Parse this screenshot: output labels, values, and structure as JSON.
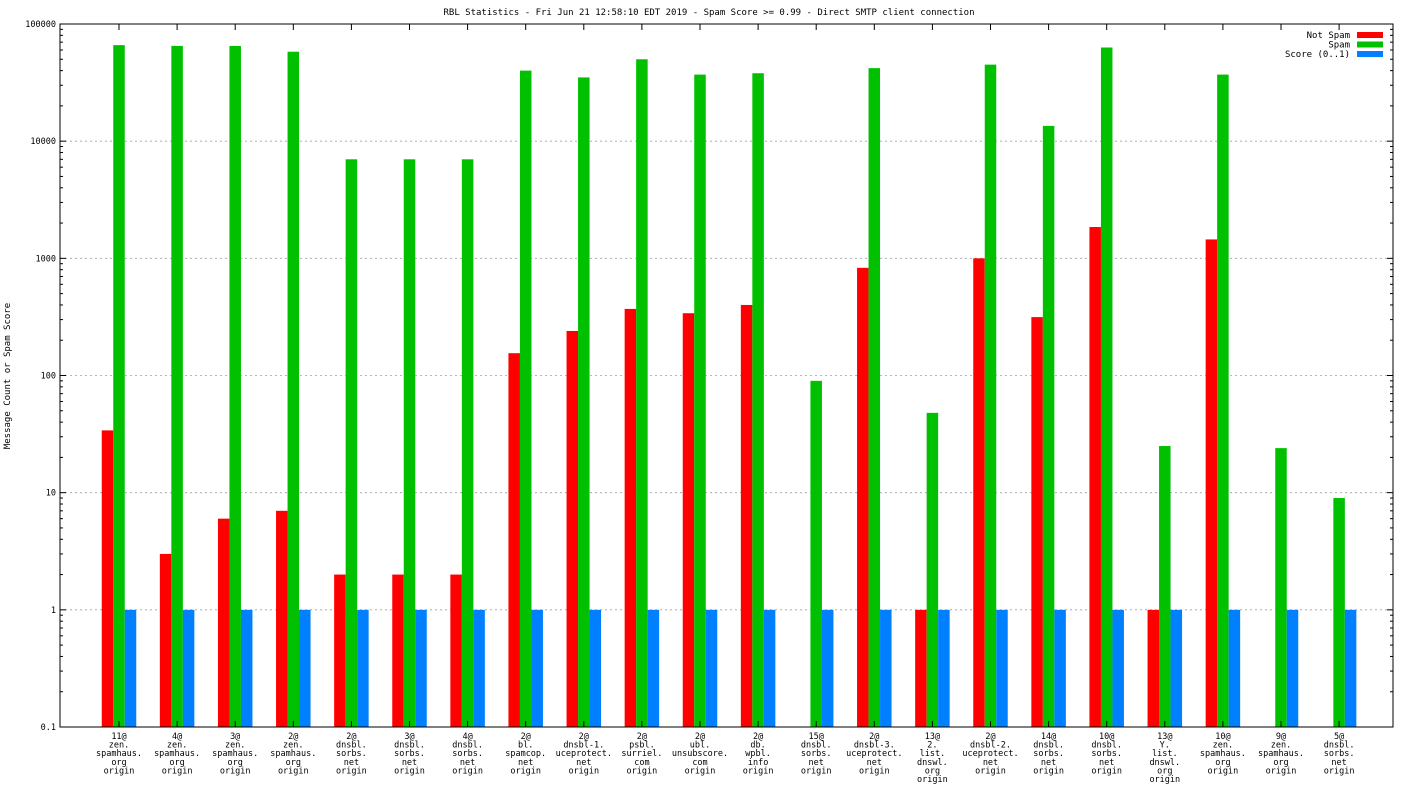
{
  "chart_data": {
    "type": "bar",
    "title": "RBL Statistics - Fri Jun 21 12:58:10 EDT 2019 - Spam Score >= 0.99 - Direct SMTP client connection",
    "xlabel": "",
    "ylabel": "Message Count or Spam Score",
    "yscale": "log",
    "ylim": [
      0.1,
      100000
    ],
    "yticks": [
      "0.1",
      "1",
      "10",
      "100",
      "1000",
      "10000",
      "100000"
    ],
    "grid": true,
    "legend_position": "top-right",
    "categories": [
      "11@ zen. spamhaus. org origin",
      "4@ zen. spamhaus. org origin",
      "3@ zen. spamhaus. org origin",
      "2@ zen. spamhaus. org origin",
      "2@ dnsbl. sorbs. net origin",
      "3@ dnsbl. sorbs. net origin",
      "4@ dnsbl. sorbs. net origin",
      "2@ bl. spamcop. net origin",
      "2@ dnsbl-1. uceprotect. net origin",
      "2@ psbl. surriel. com origin",
      "2@ ubl. unsubscore. com origin",
      "2@ db. wpbl. info origin",
      "15@ dnsbl. sorbs. net origin",
      "2@ dnsbl-3. uceprotect. net origin",
      "13@ 2. list. dnswl. org origin",
      "2@ dnsbl-2. uceprotect. net origin",
      "14@ dnsbl. sorbs. net origin",
      "10@ dnsbl. sorbs. net origin",
      "13@ Y. list. dnswl. org origin",
      "10@ zen. spamhaus. org origin",
      "9@ zen. spamhaus. org origin",
      "5@ dnsbl. sorbs. net origin"
    ],
    "category_lines": [
      [
        "11@",
        "zen.",
        "spamhaus.",
        "org",
        "origin"
      ],
      [
        "4@",
        "zen.",
        "spamhaus.",
        "org",
        "origin"
      ],
      [
        "3@",
        "zen.",
        "spamhaus.",
        "org",
        "origin"
      ],
      [
        "2@",
        "zen.",
        "spamhaus.",
        "org",
        "origin"
      ],
      [
        "2@",
        "dnsbl.",
        "sorbs.",
        "net",
        "origin"
      ],
      [
        "3@",
        "dnsbl.",
        "sorbs.",
        "net",
        "origin"
      ],
      [
        "4@",
        "dnsbl.",
        "sorbs.",
        "net",
        "origin"
      ],
      [
        "2@",
        "bl.",
        "spamcop.",
        "net",
        "origin"
      ],
      [
        "2@",
        "dnsbl-1.",
        "uceprotect.",
        "net",
        "origin"
      ],
      [
        "2@",
        "psbl.",
        "surriel.",
        "com",
        "origin"
      ],
      [
        "2@",
        "ubl.",
        "unsubscore.",
        "com",
        "origin"
      ],
      [
        "2@",
        "db.",
        "wpbl.",
        "info",
        "origin"
      ],
      [
        "15@",
        "dnsbl.",
        "sorbs.",
        "net",
        "origin"
      ],
      [
        "2@",
        "dnsbl-3.",
        "uceprotect.",
        "net",
        "origin"
      ],
      [
        "13@",
        "2.",
        "list.",
        "dnswl.",
        "org",
        "origin"
      ],
      [
        "2@",
        "dnsbl-2.",
        "uceprotect.",
        "net",
        "origin"
      ],
      [
        "14@",
        "dnsbl.",
        "sorbs.",
        "net",
        "origin"
      ],
      [
        "10@",
        "dnsbl.",
        "sorbs.",
        "net",
        "origin"
      ],
      [
        "13@",
        "Y.",
        "list.",
        "dnswl.",
        "org",
        "origin"
      ],
      [
        "10@",
        "zen.",
        "spamhaus.",
        "org",
        "origin"
      ],
      [
        "9@",
        "zen.",
        "spamhaus.",
        "org",
        "origin"
      ],
      [
        "5@",
        "dnsbl.",
        "sorbs.",
        "net",
        "origin"
      ]
    ],
    "series": [
      {
        "name": "Not Spam",
        "color": "#ff0000",
        "values": [
          34,
          3,
          6,
          7,
          2,
          2,
          2,
          155,
          240,
          370,
          340,
          400,
          null,
          830,
          1,
          1000,
          315,
          1850,
          1,
          1450,
          null,
          null
        ]
      },
      {
        "name": "Spam",
        "color": "#00c000",
        "values": [
          66000,
          65000,
          65000,
          58000,
          7000,
          7000,
          7000,
          40000,
          35000,
          50000,
          37000,
          38000,
          90,
          42000,
          48,
          45000,
          13500,
          63000,
          25,
          37000,
          24,
          9
        ]
      },
      {
        "name": "Score (0..1)",
        "color": "#0080ff",
        "values": [
          1,
          1,
          1,
          1,
          1,
          1,
          1,
          1,
          1,
          1,
          1,
          1,
          1,
          1,
          1,
          1,
          1,
          1,
          1,
          1,
          1,
          1
        ]
      }
    ]
  }
}
